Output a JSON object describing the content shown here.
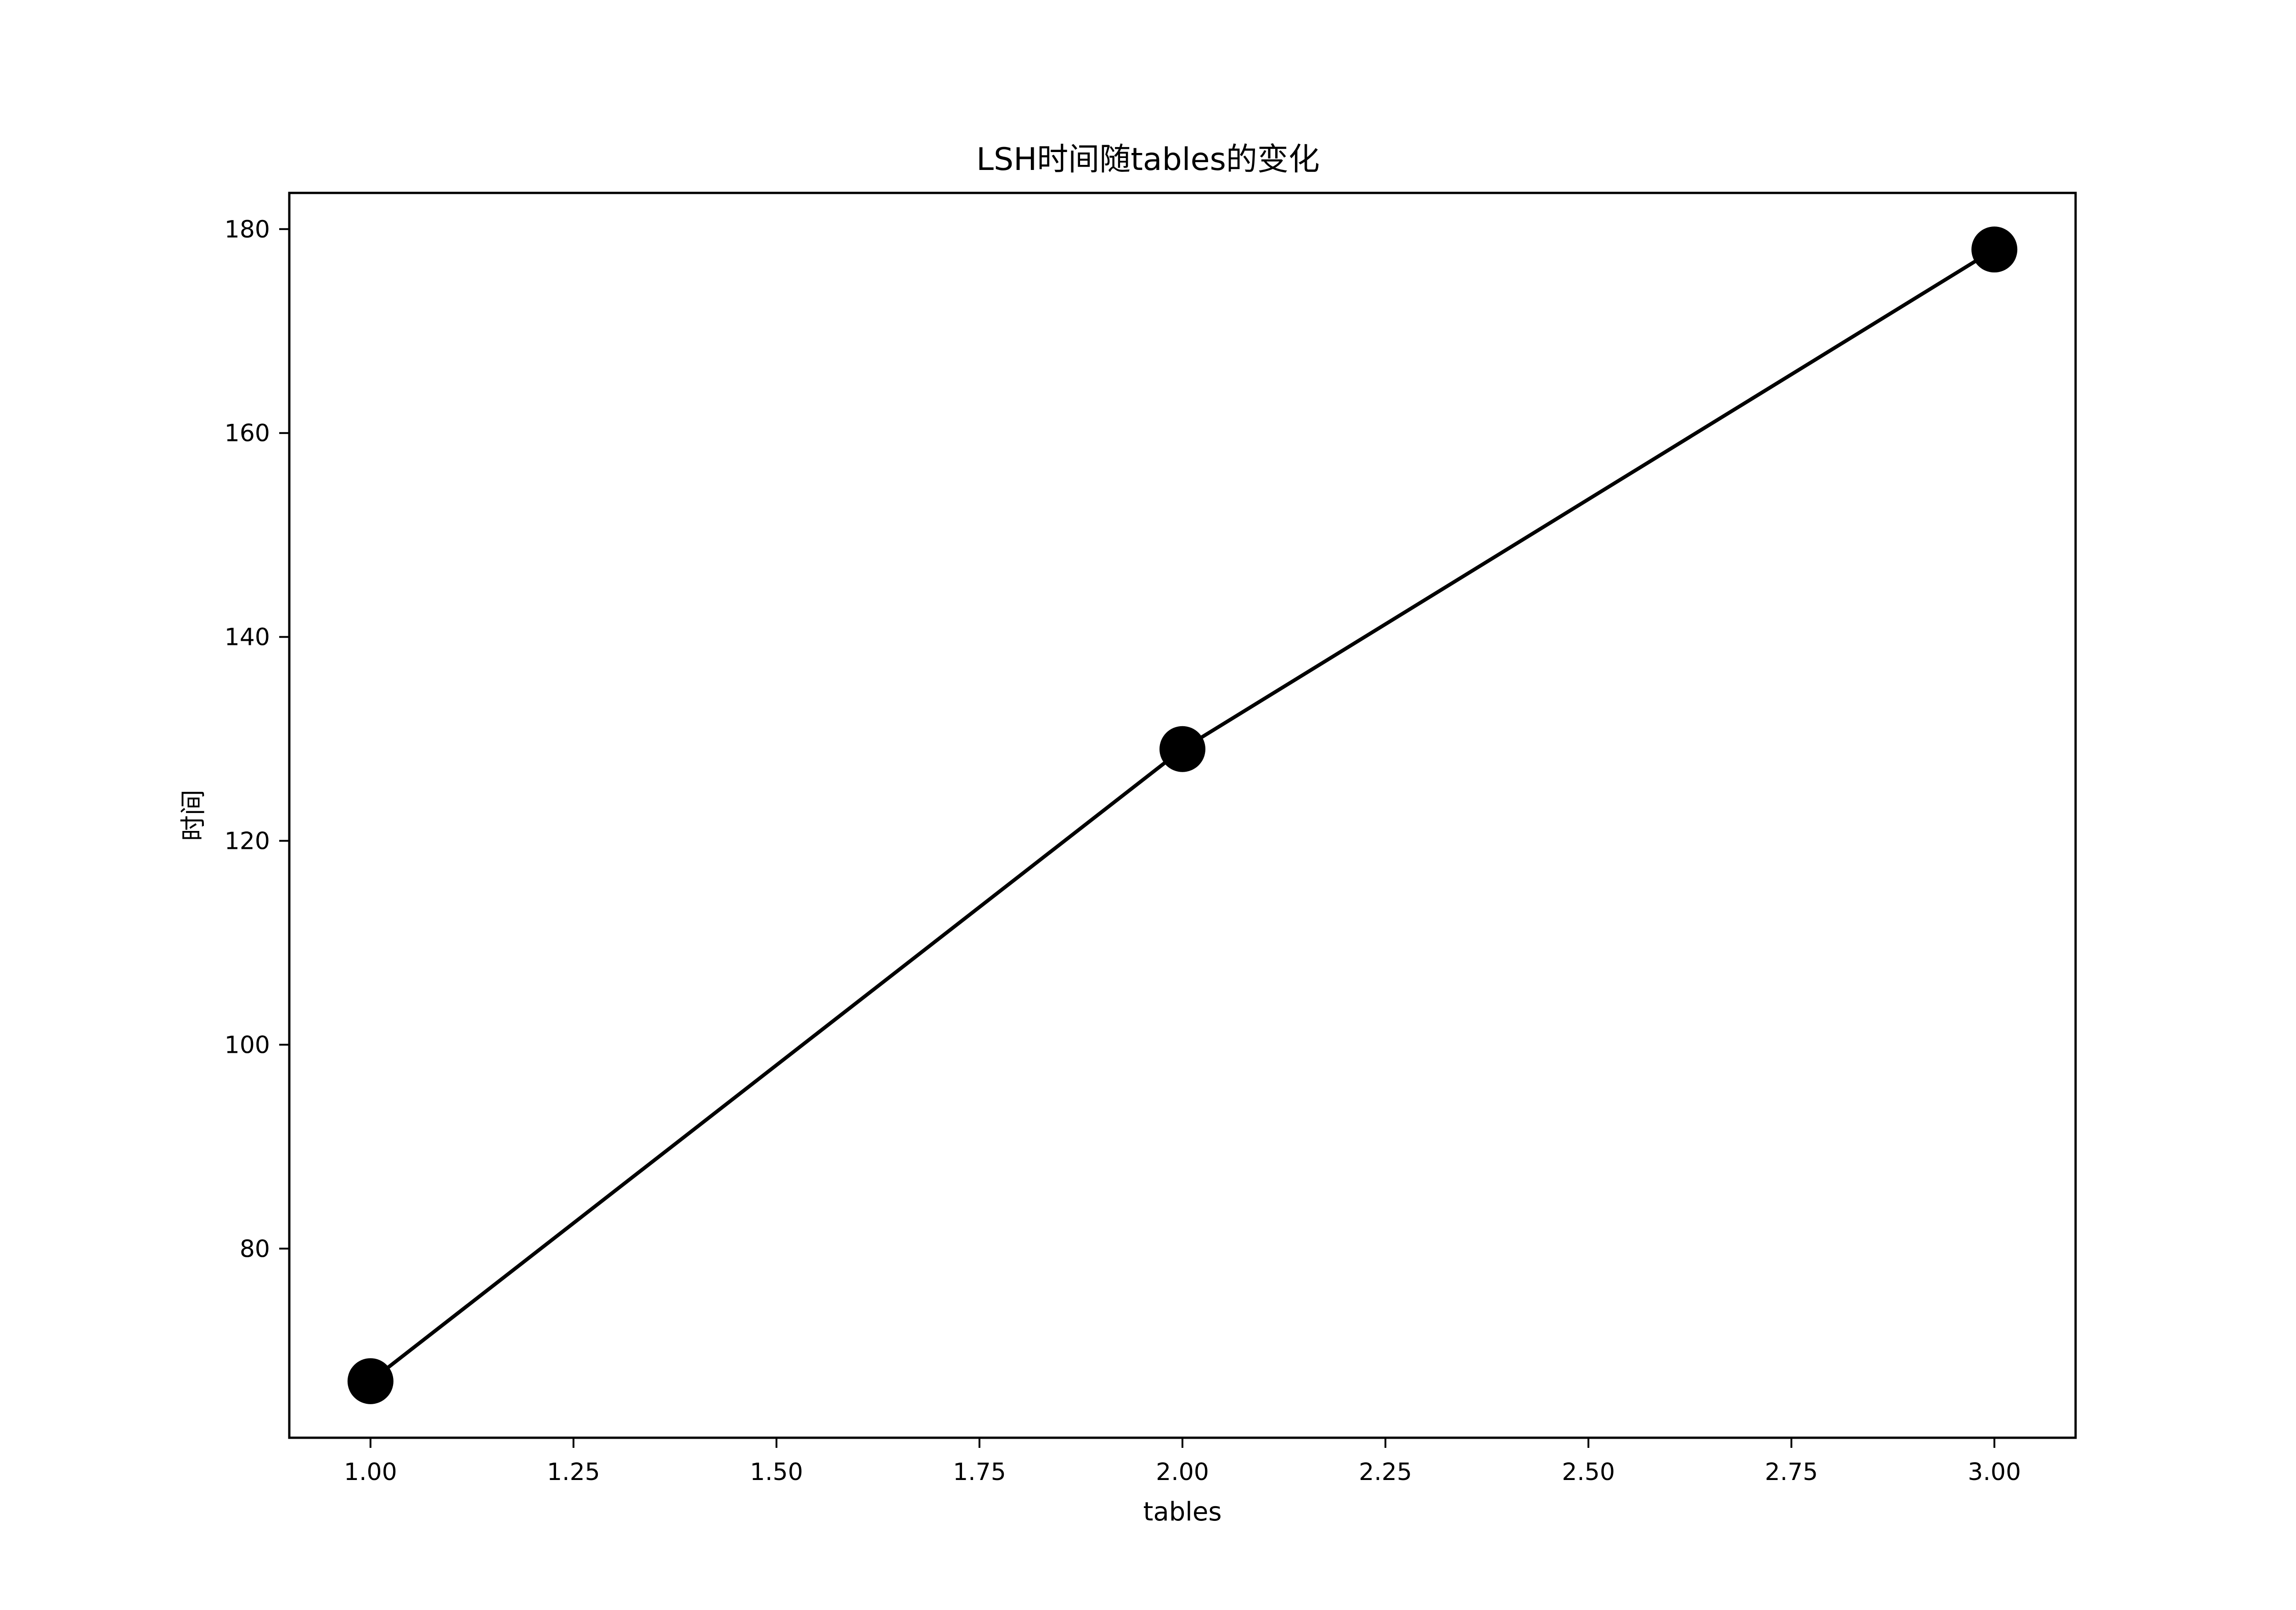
{
  "chart_data": {
    "type": "line",
    "title": "LSH时间随tables的变化",
    "xlabel": "tables",
    "ylabel": "时间",
    "x": [
      1,
      2,
      3
    ],
    "series": [
      {
        "values": [
          67,
          129,
          178
        ],
        "color": "#000000",
        "marker": "circle"
      }
    ],
    "xlim": [
      0.9,
      3.1
    ],
    "ylim": [
      61.45,
      183.55
    ],
    "xticks": [
      1.0,
      1.25,
      1.5,
      1.75,
      2.0,
      2.25,
      2.5,
      2.75,
      3.0
    ],
    "xtick_labels": [
      "1.00",
      "1.25",
      "1.50",
      "1.75",
      "2.00",
      "2.25",
      "2.50",
      "2.75",
      "3.00"
    ],
    "yticks": [
      80,
      100,
      120,
      140,
      160,
      180
    ],
    "ytick_labels": [
      "80",
      "100",
      "120",
      "140",
      "160",
      "180"
    ],
    "grid": false,
    "legend": null
  }
}
